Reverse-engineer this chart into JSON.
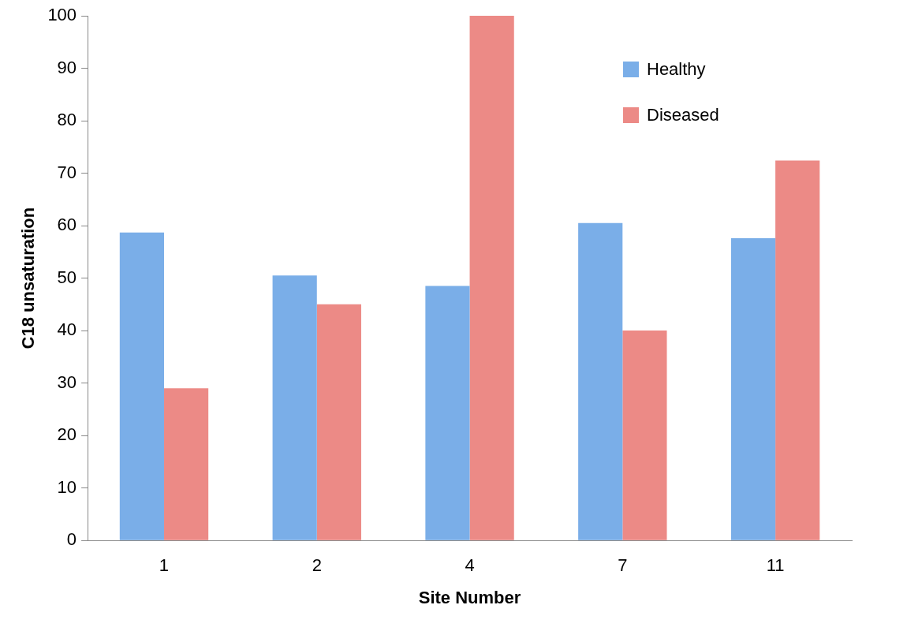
{
  "chart_data": {
    "type": "bar",
    "xlabel": "Site Number",
    "ylabel": "C18 unsaturation",
    "categories": [
      "1",
      "2",
      "4",
      "7",
      "11"
    ],
    "series": [
      {
        "name": "Healthy",
        "color": "#7aaee8",
        "values": [
          58.7,
          50.5,
          48.5,
          60.5,
          57.6
        ]
      },
      {
        "name": "Diseased",
        "color": "#ec8a86",
        "values": [
          29,
          45,
          100,
          40,
          72.4
        ]
      }
    ],
    "ylim": [
      0,
      100
    ],
    "yticks": [
      0,
      10,
      20,
      30,
      40,
      50,
      60,
      70,
      80,
      90,
      100
    ],
    "grid": false,
    "legend": "top right"
  }
}
